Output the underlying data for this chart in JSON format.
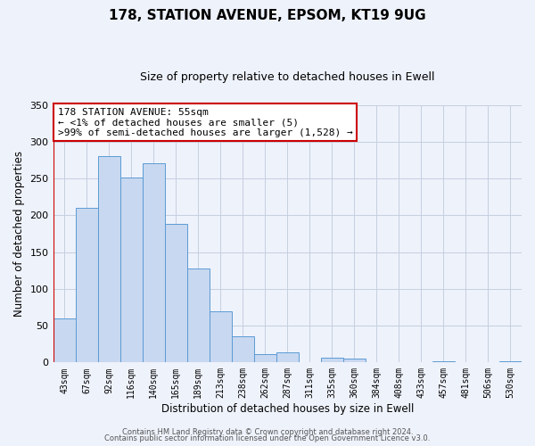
{
  "title": "178, STATION AVENUE, EPSOM, KT19 9UG",
  "subtitle": "Size of property relative to detached houses in Ewell",
  "xlabel": "Distribution of detached houses by size in Ewell",
  "ylabel": "Number of detached properties",
  "bin_labels": [
    "43sqm",
    "67sqm",
    "92sqm",
    "116sqm",
    "140sqm",
    "165sqm",
    "189sqm",
    "213sqm",
    "238sqm",
    "262sqm",
    "287sqm",
    "311sqm",
    "335sqm",
    "360sqm",
    "384sqm",
    "408sqm",
    "433sqm",
    "457sqm",
    "481sqm",
    "506sqm",
    "530sqm"
  ],
  "bar_values": [
    60,
    210,
    281,
    251,
    271,
    188,
    128,
    69,
    35,
    11,
    14,
    0,
    6,
    5,
    0,
    0,
    0,
    2,
    0,
    0,
    2
  ],
  "bar_color": "#c8d8f0",
  "bar_edge_color": "#5b9bd5",
  "highlight_color": "#cc0000",
  "ylim": [
    0,
    350
  ],
  "yticks": [
    0,
    50,
    100,
    150,
    200,
    250,
    300,
    350
  ],
  "annotation_line1": "178 STATION AVENUE: 55sqm",
  "annotation_line2": "← <1% of detached houses are smaller (5)",
  "annotation_line3": ">99% of semi-detached houses are larger (1,528) →",
  "annotation_box_color": "#ffffff",
  "annotation_box_edge_color": "#cc0000",
  "footer_line1": "Contains HM Land Registry data © Crown copyright and database right 2024.",
  "footer_line2": "Contains public sector information licensed under the Open Government Licence v3.0.",
  "background_color": "#eef2fb",
  "grid_color": "#c5cfe0",
  "title_fontsize": 11,
  "subtitle_fontsize": 9,
  "axis_label_fontsize": 8.5,
  "tick_fontsize": 7,
  "annotation_fontsize": 8,
  "footer_fontsize": 6
}
